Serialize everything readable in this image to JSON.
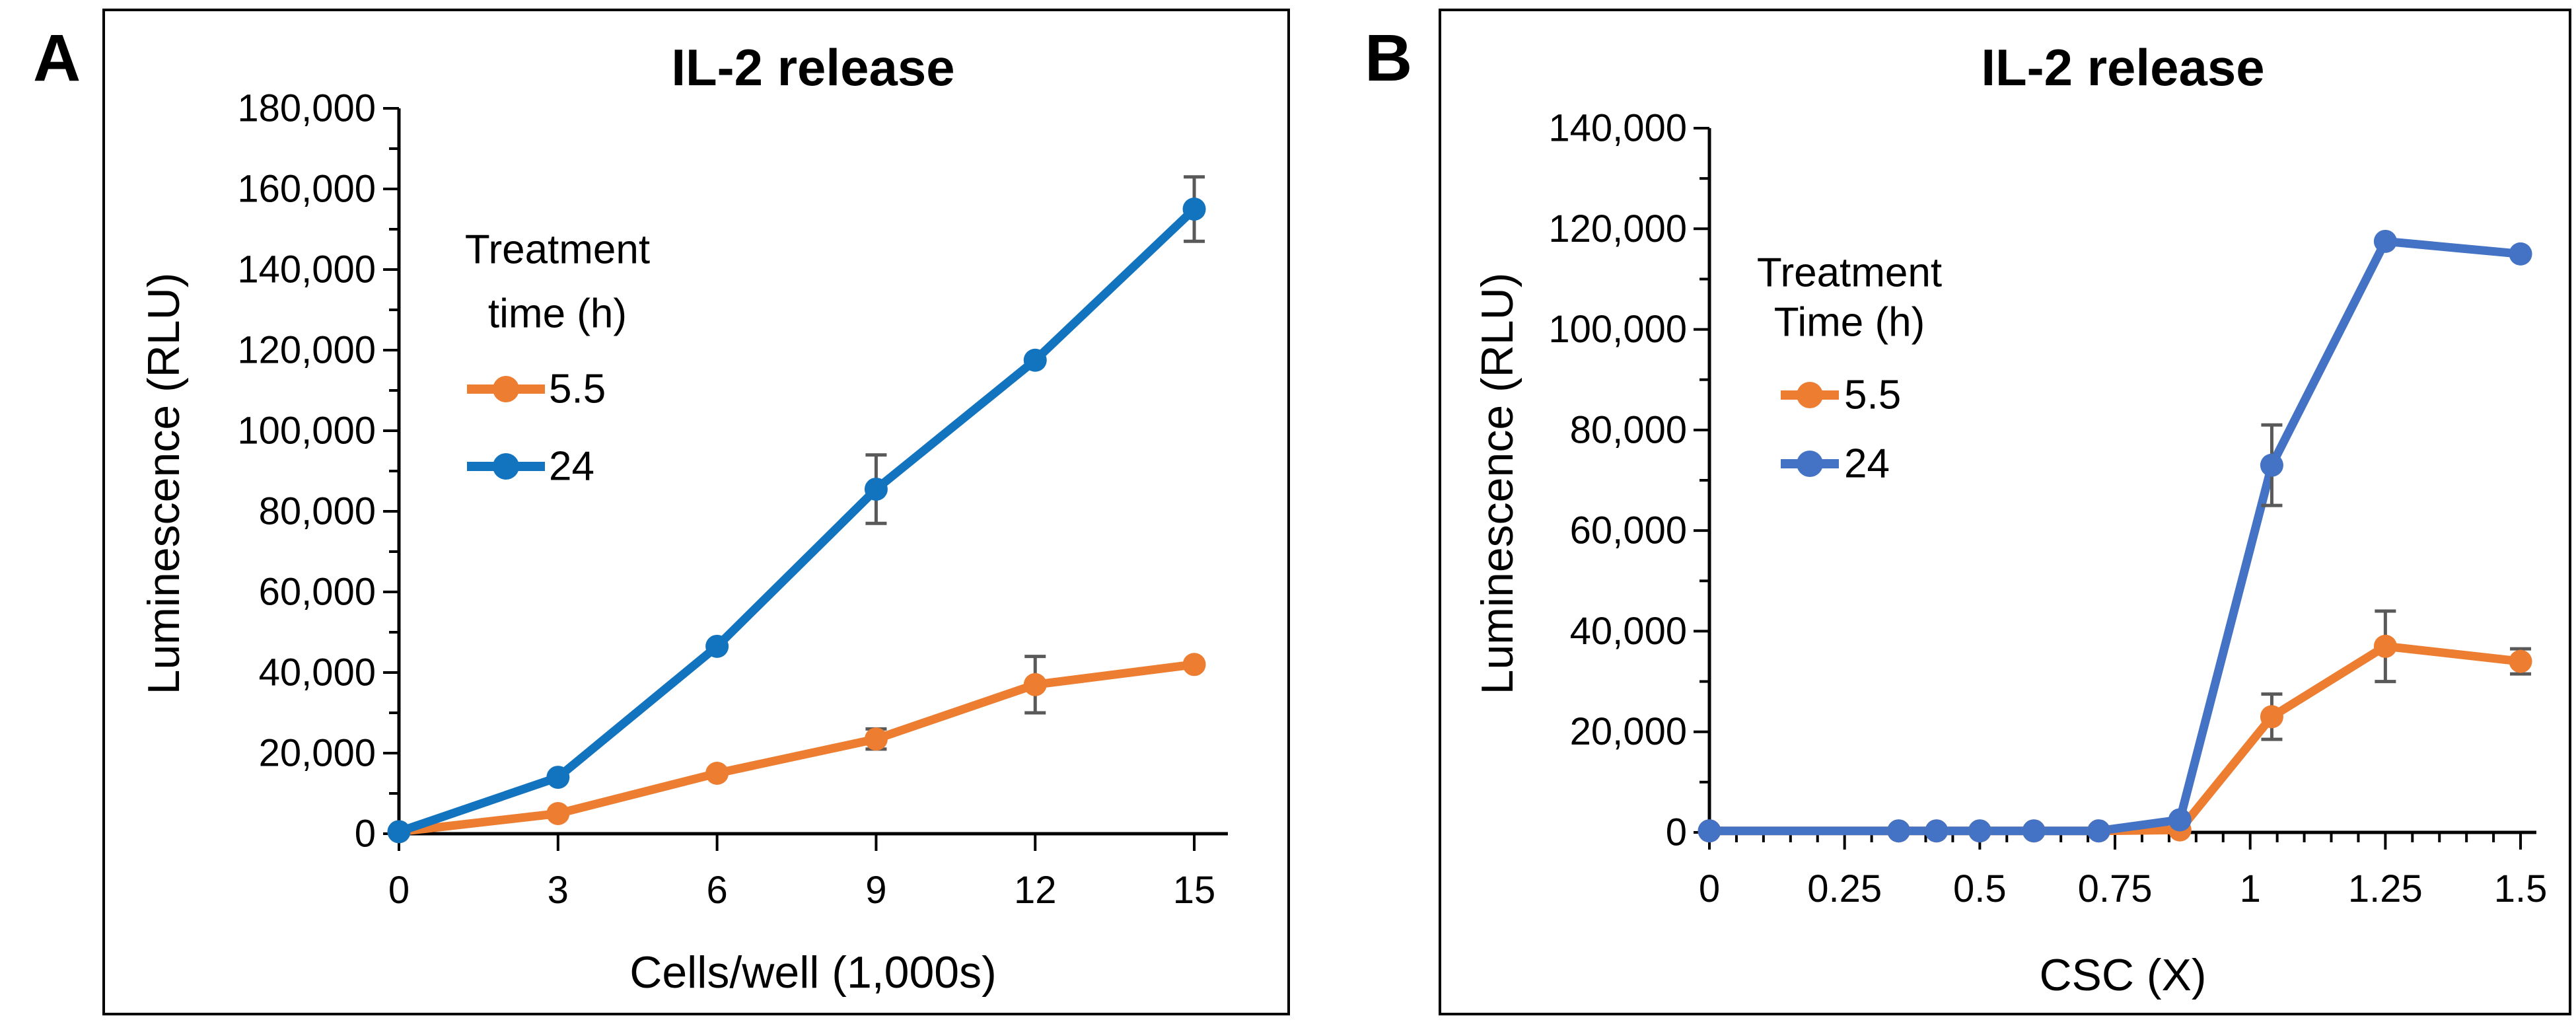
{
  "figure": {
    "background": "#ffffff",
    "text_color": "#000000",
    "axis_color": "#000000",
    "error_bar_color": "#595959"
  },
  "chart_data": [
    {
      "type": "line",
      "panel_label": "A",
      "title": "IL-2 release",
      "xlabel": "Cells/well (1,000s)",
      "ylabel": "Luminescence (RLU)",
      "legend": {
        "title_lines": [
          "Treatment",
          "time (h)"
        ],
        "position": "upper-left-inside",
        "entries": [
          {
            "label": "5.5",
            "color": "#ED7D31"
          },
          {
            "label": "24",
            "color": "#1273BE"
          }
        ]
      },
      "x": [
        0,
        3,
        6,
        9,
        12,
        15
      ],
      "xticks": [
        0,
        3,
        6,
        9,
        12,
        15
      ],
      "xtick_labels": [
        "0",
        "3",
        "6",
        "9",
        "12",
        "15"
      ],
      "xlim": [
        0,
        15.6
      ],
      "ylim": [
        0,
        180000
      ],
      "ytick_major": 20000,
      "ytick_minor": 10000,
      "ytick_labels": [
        "0",
        "20,000",
        "40,000",
        "60,000",
        "80,000",
        "100,000",
        "120,000",
        "140,000",
        "160,000",
        "180,000"
      ],
      "grid": false,
      "series": [
        {
          "name": "5.5",
          "color": "#ED7D31",
          "values": [
            500,
            5000,
            15000,
            23500,
            37000,
            42000
          ],
          "errors": [
            0,
            0,
            0,
            2500,
            7000,
            0
          ]
        },
        {
          "name": "24",
          "color": "#1273BE",
          "values": [
            500,
            14000,
            46500,
            85500,
            117500,
            155000
          ],
          "errors": [
            0,
            0,
            0,
            8500,
            0,
            8000
          ]
        }
      ]
    },
    {
      "type": "line",
      "panel_label": "B",
      "title": "IL-2 release",
      "xlabel": "CSC (X)",
      "ylabel": "Luminescence (RLU)",
      "legend": {
        "title_lines": [
          "Treatment",
          "Time (h)"
        ],
        "position": "upper-left-inside",
        "entries": [
          {
            "label": "5.5",
            "color": "#ED7D31"
          },
          {
            "label": "24",
            "color": "#4472C4"
          }
        ]
      },
      "x": [
        0,
        0.35,
        0.42,
        0.5,
        0.6,
        0.72,
        0.87,
        1.04,
        1.25,
        1.5
      ],
      "xticks": [
        0,
        0.25,
        0.5,
        0.75,
        1,
        1.25,
        1.5
      ],
      "xtick_labels": [
        "0",
        "0.25",
        "0.5",
        "0.75",
        "1",
        "1.25",
        "1.5"
      ],
      "xminor_step": 0.05,
      "xlim": [
        0,
        1.53
      ],
      "ylim": [
        0,
        140000
      ],
      "ytick_major": 20000,
      "ytick_minor": 10000,
      "ytick_labels": [
        "0",
        "20,000",
        "40,000",
        "60,000",
        "80,000",
        "100,000",
        "120,000",
        "140,000"
      ],
      "grid": false,
      "series": [
        {
          "name": "5.5",
          "color": "#ED7D31",
          "values": [
            300,
            300,
            300,
            300,
            300,
            300,
            500,
            23000,
            37000,
            34000
          ],
          "errors": [
            0,
            0,
            0,
            0,
            0,
            0,
            0,
            4500,
            7000,
            2500
          ]
        },
        {
          "name": "24",
          "color": "#4472C4",
          "values": [
            300,
            300,
            300,
            300,
            300,
            300,
            2500,
            73000,
            117500,
            115000
          ],
          "errors": [
            0,
            0,
            0,
            0,
            0,
            0,
            0,
            8000,
            0,
            0
          ]
        }
      ]
    }
  ]
}
